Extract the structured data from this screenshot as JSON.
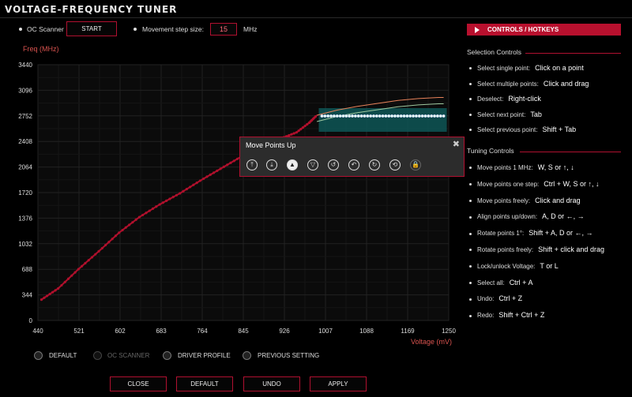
{
  "window": {
    "title": "VOLTAGE-FREQUENCY TUNER"
  },
  "top_controls": {
    "oc_scanner_label": "OC Scanner",
    "start_label": "START",
    "step_size_label": "Movement step size:",
    "step_size_value": "15",
    "step_unit": "MHz"
  },
  "chart": {
    "ylabel": "Freq (MHz)",
    "xlabel": "Voltage (mV)",
    "y_ticks": [
      "3440",
      "3096",
      "2752",
      "2408",
      "2064",
      "1720",
      "1376",
      "1032",
      "688",
      "344",
      "0"
    ],
    "x_ticks": [
      "440",
      "521",
      "602",
      "683",
      "764",
      "845",
      "926",
      "1007",
      "1088",
      "1169",
      "1250"
    ]
  },
  "chart_data": {
    "type": "line",
    "xlabel": "Voltage (mV)",
    "ylabel": "Freq (MHz)",
    "xlim": [
      440,
      1250
    ],
    "ylim": [
      0,
      3440
    ],
    "grid": true,
    "series": [
      {
        "name": "",
        "x": [
          447,
          480,
          520,
          560,
          600,
          640,
          680,
          720,
          760,
          800,
          840,
          880,
          920,
          950,
          975,
          990
        ],
        "values": [
          280,
          430,
          690,
          930,
          1180,
          1390,
          1560,
          1710,
          1880,
          2040,
          2200,
          2330,
          2450,
          2530,
          2660,
          2760
        ]
      },
      {
        "name": "",
        "x": [
          990,
          1030,
          1070,
          1110,
          1150,
          1190,
          1230,
          1240
        ],
        "values": [
          2760,
          2830,
          2880,
          2920,
          2960,
          2985,
          3000,
          3000
        ]
      }
    ],
    "selected_points": {
      "x": [
        1000,
        1240
      ],
      "value": 2750
    }
  },
  "popup": {
    "title": "Move Points Up",
    "close_glyph": "✖",
    "tools": [
      {
        "icon": "move-top-icon",
        "glyph": "⤒"
      },
      {
        "icon": "move-bottom-icon",
        "glyph": "⤓"
      },
      {
        "icon": "move-up-icon",
        "glyph": "▲"
      },
      {
        "icon": "move-down-icon",
        "glyph": "▽"
      },
      {
        "icon": "rotate-left-icon",
        "glyph": "↺"
      },
      {
        "icon": "rotate-left-alt-icon",
        "glyph": "↶"
      },
      {
        "icon": "rotate-right-icon",
        "glyph": "↻"
      },
      {
        "icon": "undo-icon",
        "glyph": "⟲"
      },
      {
        "icon": "lock-icon",
        "glyph": "🔒"
      }
    ]
  },
  "controls_panel": {
    "header": "CONTROLS / HOTKEYS",
    "selection_title": "Selection Controls",
    "selection": [
      {
        "label": "Select single point:",
        "key": "Click on a point"
      },
      {
        "label": "Select multiple points:",
        "key": "Click and drag"
      },
      {
        "label": "Deselect:",
        "key": "Right-click"
      },
      {
        "label": "Select next point:",
        "key": "Tab"
      },
      {
        "label": "Select previous point:",
        "key": "Shift + Tab"
      }
    ],
    "tuning_title": "Tuning Controls",
    "tuning": [
      {
        "label": "Move points 1 MHz:",
        "key": "W, S or ↑, ↓"
      },
      {
        "label": "Move points one step:",
        "key": "Ctrl + W, S or ↑, ↓"
      },
      {
        "label": "Move points freely:",
        "key": "Click and drag"
      },
      {
        "label": "Align points up/down:",
        "key": "A, D or ←, →"
      },
      {
        "label": "Rotate points 1°:",
        "key": "Shift + A, D or ←, →"
      },
      {
        "label": "Rotate points freely:",
        "key": "Shift + click and drag"
      },
      {
        "label": "Lock/unlock Voltage:",
        "key": "T or L"
      },
      {
        "label": "Select all:",
        "key": "Ctrl + A"
      },
      {
        "label": "Undo:",
        "key": "Ctrl + Z"
      },
      {
        "label": "Redo:",
        "key": "Shift + Ctrl + Z"
      }
    ]
  },
  "profiles": {
    "default": "DEFAULT",
    "oc_scanner": "OC SCANNER",
    "driver_profile": "DRIVER PROFILE",
    "previous_setting": "PREVIOUS SETTING"
  },
  "bottom_buttons": {
    "close": "CLOSE",
    "default": "DEFAULT",
    "undo": "UNDO",
    "apply": "APPLY"
  },
  "colors": {
    "accent": "#b8102e",
    "curve": "#b0102c",
    "selection_fill": "#0e5a5a"
  }
}
